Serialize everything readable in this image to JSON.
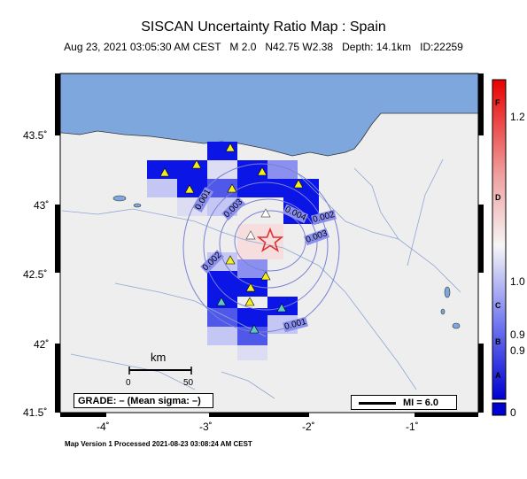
{
  "header": {
    "title": "SISCAN Uncertainty Ratio Map : Spain",
    "subtitle": "Aug 23, 2021 03:05:30 AM CEST   M 2.0   N42.75 W2.38   Depth: 14.1km   ID:22259"
  },
  "footer": "Map Version 1 Processed 2021-08-23 03:08:24 AM CEST",
  "axes": {
    "lat_labels": [
      "43.5˚",
      "43˚",
      "42.5˚",
      "42˚",
      "41.5˚"
    ],
    "lon_labels": [
      "-4˚",
      "-3˚",
      "-2˚",
      "-1˚"
    ]
  },
  "scale_bar": {
    "unit": "km",
    "ticks": [
      "0",
      "50"
    ]
  },
  "grade_label": "GRADE: – (Mean sigma: –)",
  "mi_label": "MI = 6.0",
  "contour_labels": [
    "0.001",
    "0.003",
    "0.004",
    "0.002",
    "0.003",
    "0.002",
    "0.001"
  ],
  "colorbar": {
    "letters": [
      "F",
      "D",
      "C",
      "B",
      "A"
    ],
    "values": [
      "1.2",
      "1.0",
      "0.9",
      "0.9",
      "0"
    ]
  },
  "colors": {
    "sea": "#7ea7dd",
    "land": "#eeeeee",
    "cell_blue": "#0b16e6",
    "star": "#e03030",
    "station": "#f4ef1a"
  },
  "icons": {
    "epicenter": "star-icon",
    "station": "triangle-icon"
  }
}
